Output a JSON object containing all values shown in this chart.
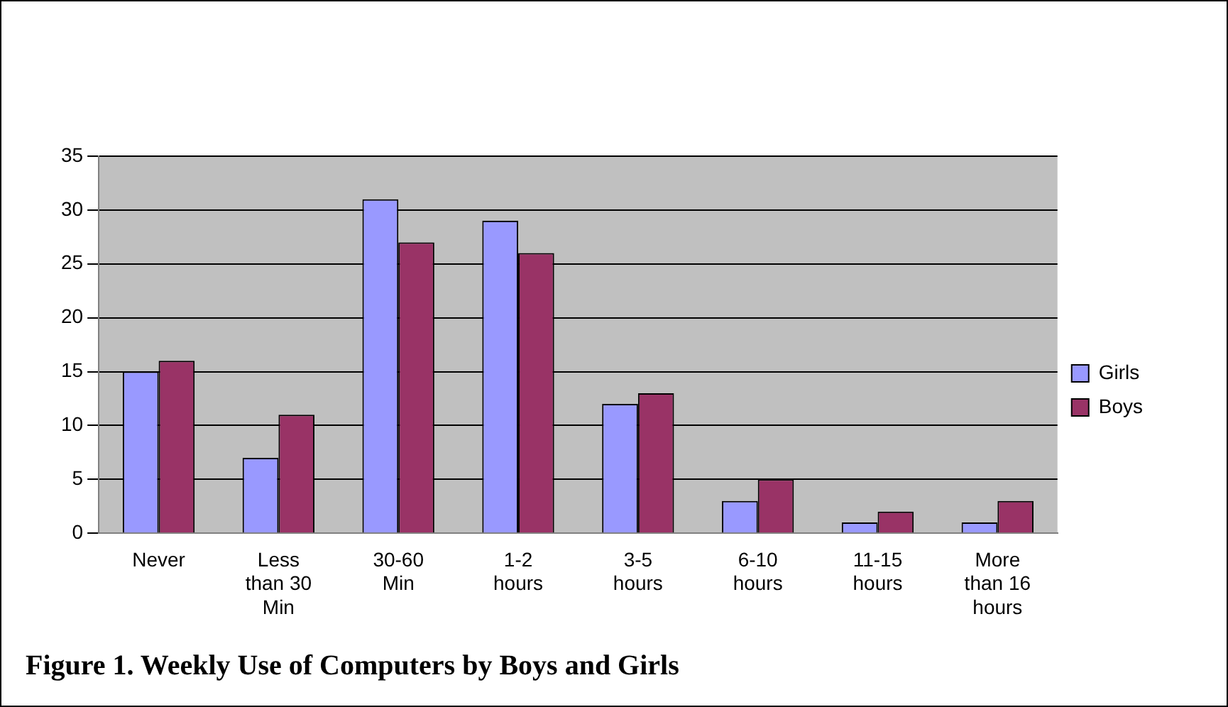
{
  "chart_data": {
    "type": "bar",
    "title": "Figure 1. Weekly Use of Computers by Boys and Girls",
    "categories": [
      "Never",
      "Less than 30 Min",
      "30-60 Min",
      "1-2 hours",
      "3-5 hours",
      "6-10 hours",
      "11-15 hours",
      "More than 16 hours"
    ],
    "series": [
      {
        "name": "Girls",
        "color": "#9999ff",
        "values": [
          15,
          7,
          31,
          29,
          12,
          3,
          1,
          1
        ]
      },
      {
        "name": "Boys",
        "color": "#993366",
        "values": [
          16,
          11,
          27,
          26,
          13,
          5,
          2,
          3
        ]
      }
    ],
    "ylim": [
      0,
      35
    ],
    "yticks": [
      0,
      5,
      10,
      15,
      20,
      25,
      30,
      35
    ],
    "grid": "y",
    "legend": "right"
  }
}
